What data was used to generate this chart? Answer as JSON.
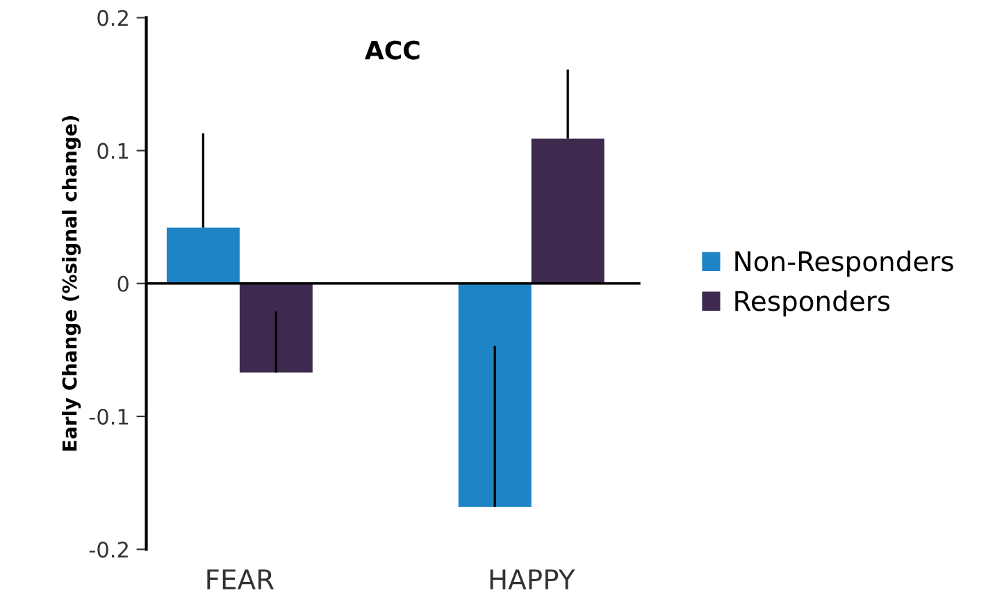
{
  "chart_data": {
    "type": "bar",
    "title": "ACC",
    "ylabel": "Early Change (%signal change)",
    "categories": [
      "FEAR",
      "HAPPY"
    ],
    "series": [
      {
        "name": "Non-Responders",
        "color": "#1f84c6",
        "values": [
          0.042,
          -0.168
        ],
        "errors": [
          [
            0.042,
            0.113
          ],
          [
            -0.168,
            -0.047
          ]
        ]
      },
      {
        "name": "Responders",
        "color": "#3e2a4e",
        "values": [
          -0.067,
          0.109
        ],
        "errors": [
          [
            -0.067,
            -0.021
          ],
          [
            0.109,
            0.161
          ]
        ]
      }
    ],
    "ylim": [
      -0.2,
      0.2
    ],
    "yticks": [
      -0.2,
      -0.1,
      0,
      0.1,
      0.2
    ],
    "legend": "right"
  }
}
